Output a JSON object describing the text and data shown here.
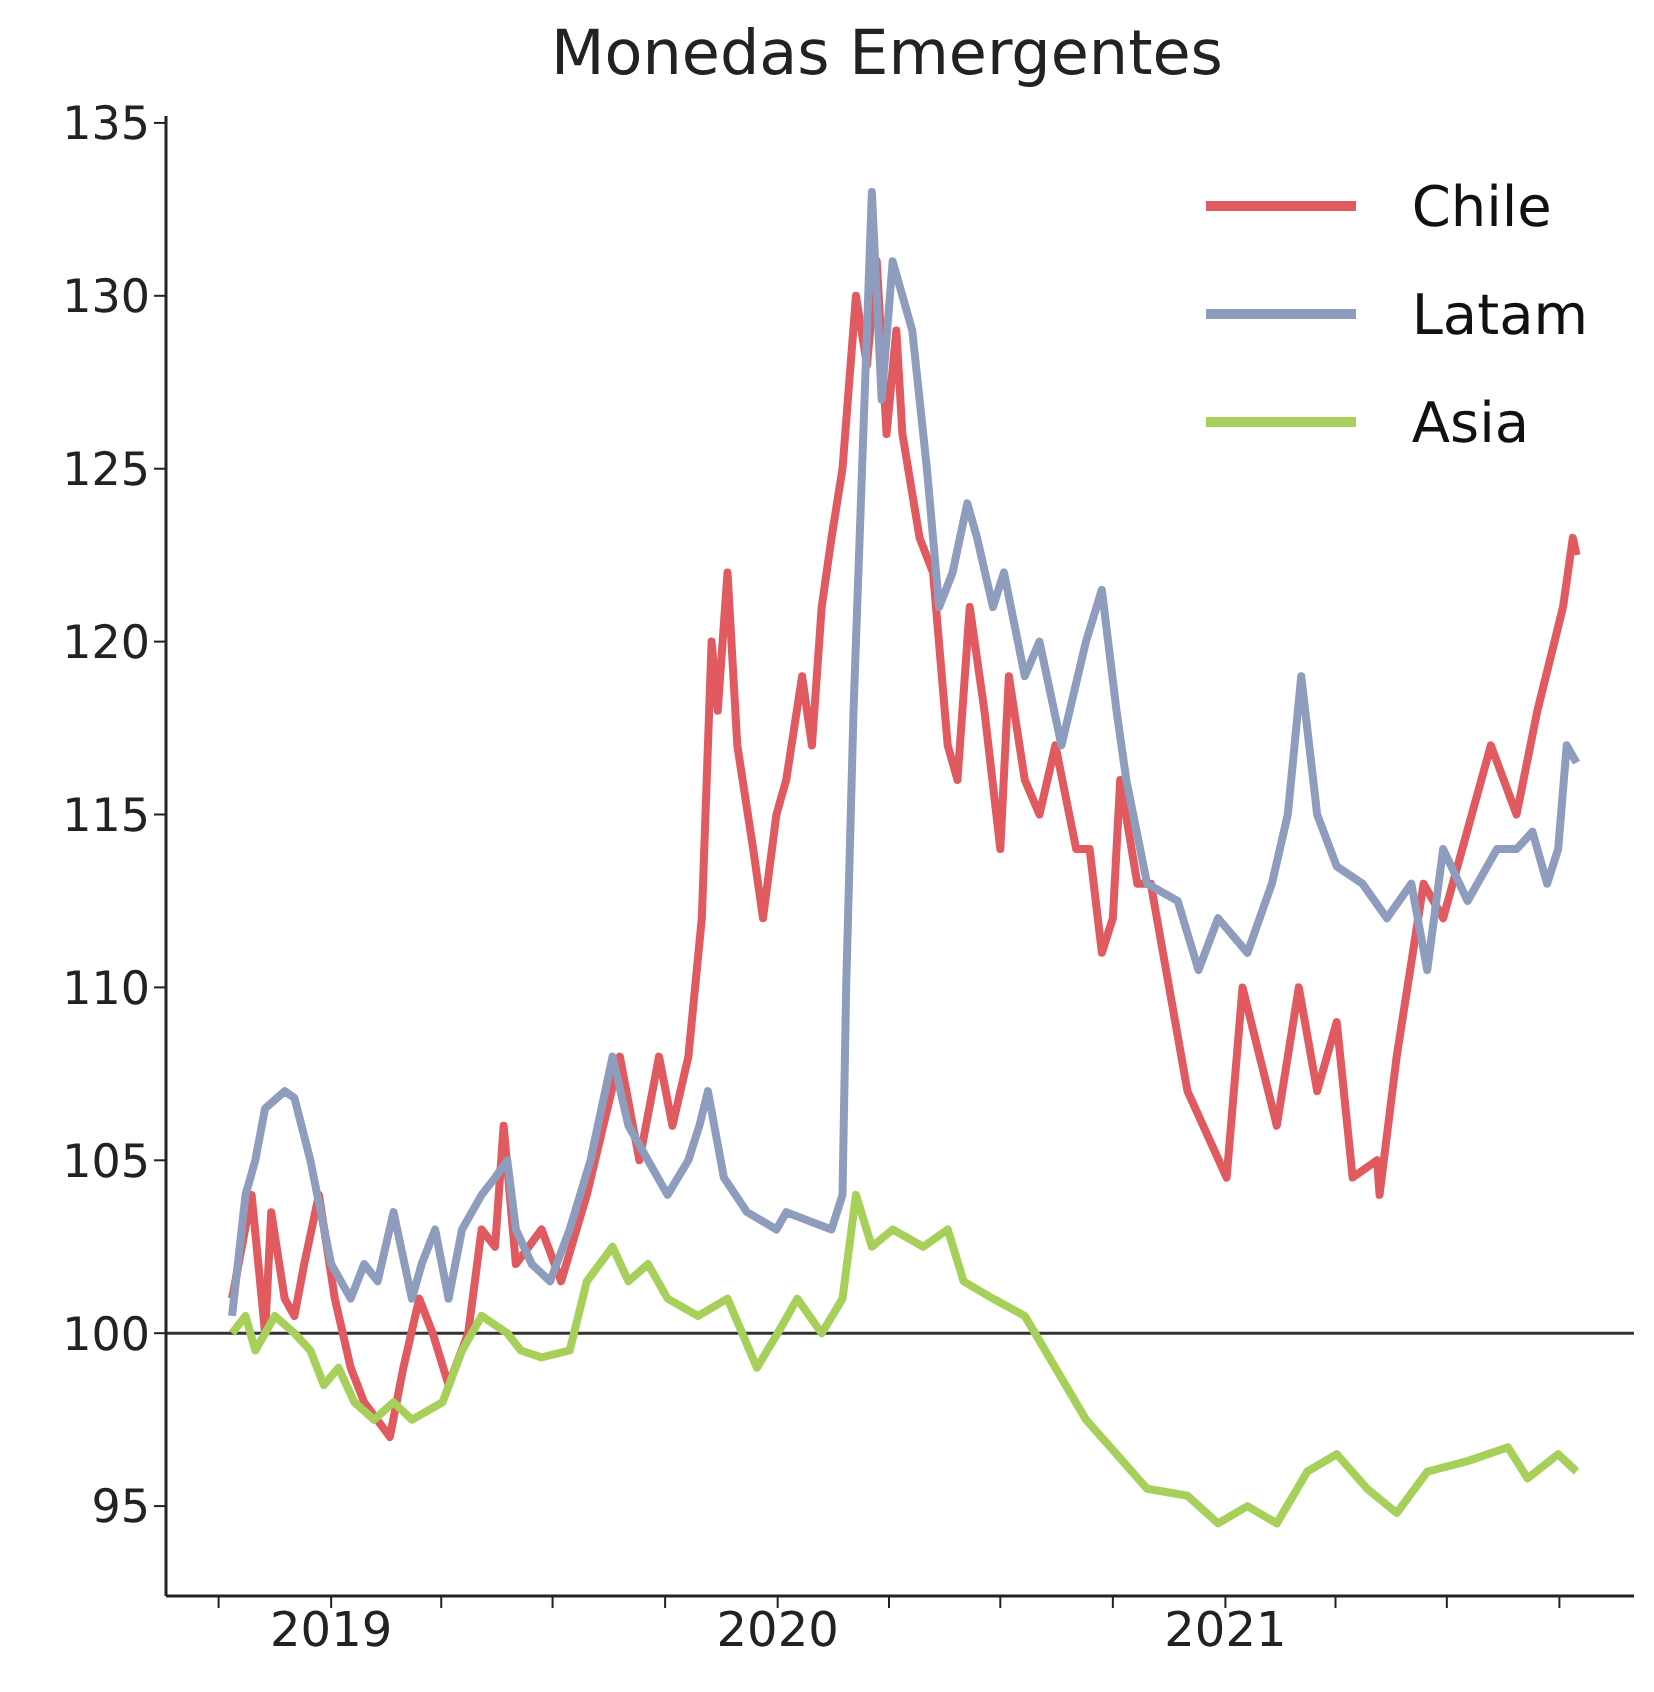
{
  "chart_data": {
    "type": "line",
    "title": "Monedas Emergentes",
    "xlim": [
      "2018-08-19",
      "2021-12-01"
    ],
    "xticks": [
      {
        "value": "2018-10-01",
        "label": null
      },
      {
        "value": "2019-01-01",
        "label": "2019"
      },
      {
        "value": "2019-04-01",
        "label": null
      },
      {
        "value": "2019-07-01",
        "label": null
      },
      {
        "value": "2019-10-01",
        "label": null
      },
      {
        "value": "2020-01-01",
        "label": "2020"
      },
      {
        "value": "2020-04-01",
        "label": null
      },
      {
        "value": "2020-07-01",
        "label": null
      },
      {
        "value": "2020-10-01",
        "label": null
      },
      {
        "value": "2021-01-01",
        "label": "2021"
      },
      {
        "value": "2021-04-01",
        "label": null
      },
      {
        "value": "2021-07-01",
        "label": null
      },
      {
        "value": "2021-10-01",
        "label": null
      }
    ],
    "ylim": [
      92.4,
      135.2
    ],
    "yticks": [
      95,
      100,
      105,
      110,
      115,
      120,
      125,
      130,
      135
    ],
    "grid": false,
    "legend": "top right",
    "marker": "none",
    "line_style": "solid",
    "ref_lines": [
      {
        "axis": "y",
        "value": 100,
        "color": "#333333"
      }
    ],
    "series": [
      {
        "name": "Chile",
        "color": "#e05a5f",
        "x": [
          "2018-10-12",
          "2018-10-28",
          "2018-11-08",
          "2018-11-13",
          "2018-11-24",
          "2018-12-02",
          "2018-12-10",
          "2018-12-22",
          "2019-01-04",
          "2019-01-17",
          "2019-01-28",
          "2019-02-18",
          "2019-03-01",
          "2019-03-14",
          "2019-03-25",
          "2019-04-07",
          "2019-04-23",
          "2019-05-04",
          "2019-05-15",
          "2019-05-22",
          "2019-06-01",
          "2019-06-22",
          "2019-07-08",
          "2019-07-29",
          "2019-08-25",
          "2019-09-10",
          "2019-09-26",
          "2019-10-07",
          "2019-10-20",
          "2019-10-31",
          "2019-11-08",
          "2019-11-13",
          "2019-11-21",
          "2019-11-29",
          "2019-12-12",
          "2019-12-20",
          "2019-12-31",
          "2020-01-08",
          "2020-01-21",
          "2020-01-29",
          "2020-02-06",
          "2020-02-14",
          "2020-02-23",
          "2020-03-05",
          "2020-03-14",
          "2020-03-22",
          "2020-03-30",
          "2020-04-07",
          "2020-04-12",
          "2020-04-26",
          "2020-05-07",
          "2020-05-19",
          "2020-05-27",
          "2020-06-06",
          "2020-06-18",
          "2020-07-01",
          "2020-07-08",
          "2020-07-21",
          "2020-08-02",
          "2020-08-15",
          "2020-09-01",
          "2020-09-12",
          "2020-09-22",
          "2020-10-01",
          "2020-10-07",
          "2020-10-21",
          "2020-11-01",
          "2020-11-11",
          "2020-12-01",
          "2021-01-02",
          "2021-01-15",
          "2021-02-12",
          "2021-03-02",
          "2021-03-17",
          "2021-04-02",
          "2021-04-15",
          "2021-05-05",
          "2021-05-07",
          "2021-05-21",
          "2021-06-12",
          "2021-06-28",
          "2021-08-06",
          "2021-08-27",
          "2021-09-13",
          "2021-10-04",
          "2021-10-12",
          "2021-10-15"
        ],
        "values": [
          101,
          104,
          100,
          103.5,
          101,
          100.5,
          102,
          104,
          101,
          99,
          98,
          97,
          99,
          101,
          100,
          98.5,
          100,
          103,
          102.5,
          106,
          102,
          103,
          101.5,
          104,
          108,
          105,
          108,
          106,
          108,
          112,
          120,
          118,
          122,
          117,
          114,
          112,
          115,
          116,
          119,
          117,
          121,
          123,
          125,
          130,
          128,
          131,
          126,
          129,
          126,
          123,
          122,
          117,
          116,
          121,
          118,
          114,
          119,
          116,
          115,
          117,
          114,
          114,
          111,
          112,
          116,
          113,
          113,
          111,
          107,
          104.5,
          110,
          106,
          110,
          107,
          109,
          104.5,
          105,
          104,
          108,
          113,
          112,
          117,
          115,
          118,
          121,
          123,
          122.5
        ]
      },
      {
        "name": "Latam",
        "color": "#8e9dbe",
        "x": [
          "2018-10-12",
          "2018-10-23",
          "2018-10-31",
          "2018-11-08",
          "2018-11-24",
          "2018-12-02",
          "2018-12-15",
          "2019-01-01",
          "2019-01-17",
          "2019-01-28",
          "2019-02-08",
          "2019-02-21",
          "2019-03-08",
          "2019-03-16",
          "2019-03-27",
          "2019-04-07",
          "2019-04-18",
          "2019-05-04",
          "2019-05-15",
          "2019-05-25",
          "2019-06-01",
          "2019-06-14",
          "2019-06-29",
          "2019-07-15",
          "2019-08-01",
          "2019-08-19",
          "2019-09-01",
          "2019-09-17",
          "2019-10-03",
          "2019-10-20",
          "2019-10-29",
          "2019-11-05",
          "2019-11-18",
          "2019-12-07",
          "2019-12-31",
          "2020-01-08",
          "2020-02-14",
          "2020-02-23",
          "2020-02-26",
          "2020-03-03",
          "2020-03-10",
          "2020-03-18",
          "2020-03-26",
          "2020-04-04",
          "2020-04-12",
          "2020-04-20",
          "2020-05-02",
          "2020-05-12",
          "2020-05-23",
          "2020-06-04",
          "2020-06-12",
          "2020-06-25",
          "2020-07-04",
          "2020-07-21",
          "2020-08-02",
          "2020-08-20",
          "2020-09-09",
          "2020-09-22",
          "2020-10-04",
          "2020-10-12",
          "2020-10-29",
          "2020-11-23",
          "2020-12-10",
          "2020-12-26",
          "2021-01-19",
          "2021-02-08",
          "2021-02-21",
          "2021-03-04",
          "2021-03-17",
          "2021-04-02",
          "2021-04-23",
          "2021-05-13",
          "2021-06-02",
          "2021-06-15",
          "2021-06-28",
          "2021-07-18",
          "2021-08-11",
          "2021-08-27",
          "2021-09-09",
          "2021-09-21",
          "2021-09-30",
          "2021-10-07",
          "2021-10-15"
        ],
        "values": [
          100.5,
          104,
          105,
          106.5,
          107,
          106.8,
          105,
          102,
          101,
          102,
          101.5,
          103.5,
          101,
          102,
          103,
          101,
          103,
          104,
          104.5,
          105,
          103,
          102,
          101.5,
          103,
          105,
          108,
          106,
          105,
          104,
          105,
          106,
          107,
          104.5,
          103.5,
          103,
          103.5,
          103,
          104,
          110,
          118,
          125,
          133,
          127,
          131,
          130,
          129,
          125,
          121,
          122,
          124,
          123,
          121,
          122,
          119,
          120,
          117,
          120,
          121.5,
          118,
          116,
          113,
          112.5,
          110.5,
          112,
          111,
          113,
          115,
          119,
          115,
          113.5,
          113,
          112,
          113,
          110.5,
          114,
          112.5,
          114,
          114,
          114.5,
          113,
          114,
          117,
          116.5
        ]
      },
      {
        "name": "Asia",
        "color": "#a6d05a",
        "x": [
          "2018-10-12",
          "2018-10-23",
          "2018-10-31",
          "2018-11-16",
          "2018-12-02",
          "2018-12-15",
          "2018-12-26",
          "2019-01-07",
          "2019-01-20",
          "2019-02-05",
          "2019-02-21",
          "2019-03-08",
          "2019-04-02",
          "2019-04-18",
          "2019-05-04",
          "2019-05-25",
          "2019-06-05",
          "2019-06-22",
          "2019-07-15",
          "2019-07-29",
          "2019-08-19",
          "2019-09-01",
          "2019-09-17",
          "2019-10-03",
          "2019-10-28",
          "2019-11-21",
          "2019-12-15",
          "2020-01-01",
          "2020-01-17",
          "2020-02-06",
          "2020-02-23",
          "2020-03-05",
          "2020-03-18",
          "2020-04-04",
          "2020-04-29",
          "2020-05-19",
          "2020-06-01",
          "2020-06-25",
          "2020-07-21",
          "2020-08-15",
          "2020-09-09",
          "2020-10-04",
          "2020-10-29",
          "2020-12-01",
          "2020-12-26",
          "2021-01-19",
          "2021-02-12",
          "2021-03-09",
          "2021-04-02",
          "2021-04-27",
          "2021-05-21",
          "2021-06-15",
          "2021-07-18",
          "2021-08-20",
          "2021-09-05",
          "2021-09-30",
          "2021-10-15"
        ],
        "values": [
          100,
          100.5,
          99.5,
          100.5,
          100,
          99.5,
          98.5,
          99,
          98,
          97.5,
          98,
          97.5,
          98,
          99.5,
          100.5,
          100,
          99.5,
          99.3,
          99.5,
          101.5,
          102.5,
          101.5,
          102,
          101,
          100.5,
          101,
          99,
          100,
          101,
          100,
          101,
          104,
          102.5,
          103,
          102.5,
          103,
          101.5,
          101,
          100.5,
          99,
          97.5,
          96.5,
          95.5,
          95.3,
          94.5,
          95,
          94.5,
          96,
          96.5,
          95.5,
          94.8,
          96,
          96.3,
          96.7,
          95.8,
          96.5,
          96
        ]
      }
    ]
  }
}
